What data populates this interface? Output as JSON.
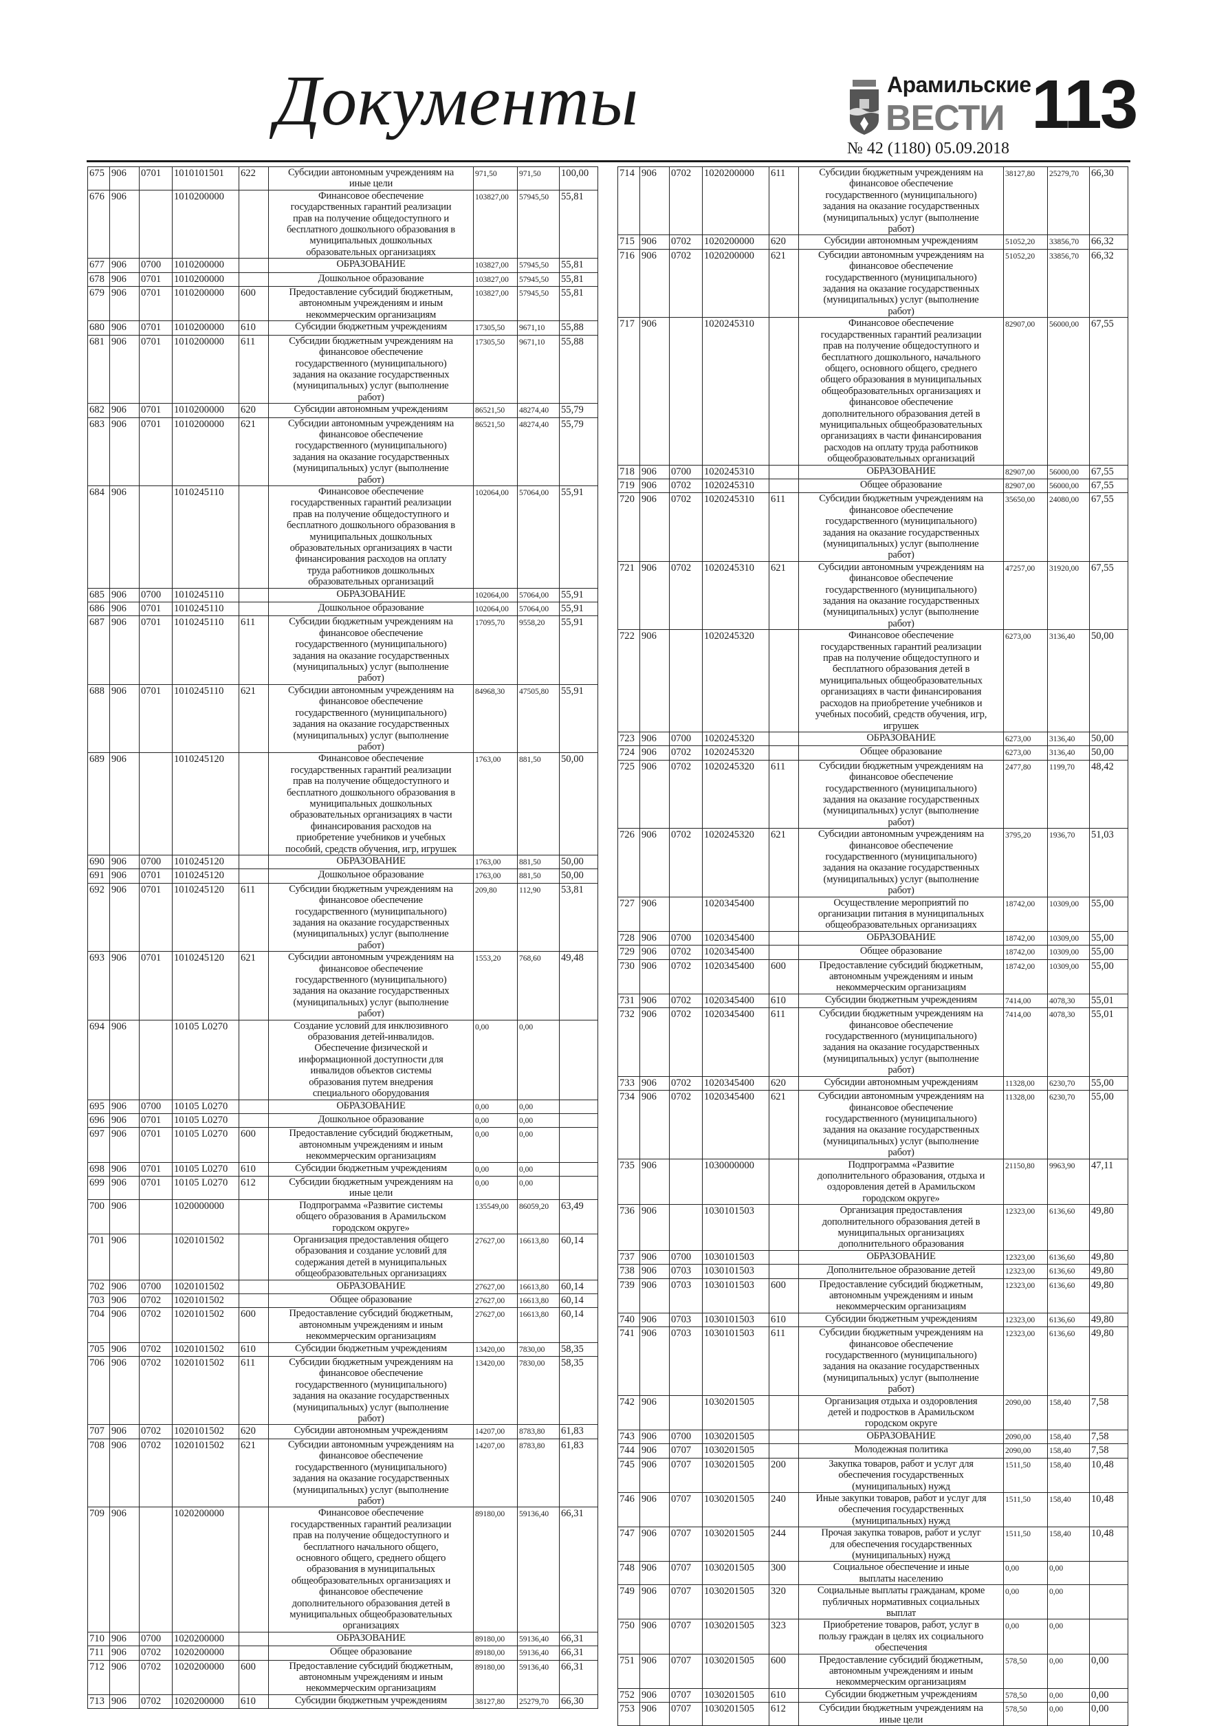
{
  "header": {
    "section_title": "Документы",
    "newspaper_name_line1": "Арамильские",
    "newspaper_name_line2": "ВЕСТИ",
    "page_number": "113",
    "issue": "№ 42 (1180) 05.09.2018",
    "logo_icon": "coat-of-arms-icon"
  },
  "texts": {
    "A": "Субсидии автономным учреждениям на иные цели",
    "FIN_DOSH": "Финансовое обеспечение государственных гарантий реализации прав на получение общедоступного и бесплатного дошкольного образования в муниципальных дошкольных образовательных организациях",
    "OBR": "ОБРАЗОВАНИЕ",
    "DOSH": "Дошкольное образование",
    "OBSH": "Общее образование",
    "PRED": "Предоставление субсидий бюджетным, автономным учреждениям и иным некоммерческим организациям",
    "SB": "Субсидии бюджетным учреждениям",
    "SB_FIN": "Субсидии бюджетным учреждениям на финансовое обеспечение государственного (муниципального) задания на оказание государственных (муниципальных) услуг (выполнение работ)",
    "SA": "Субсидии автономным учреждениям",
    "SA_FIN": "Субсидии автономным учреждениям на финансовое обеспечение государственного (муниципального) задания на оказание государственных (муниципальных) услуг (выполнение работ)",
    "SB_INYE": "Субсидии бюджетным учреждениям на иные цели"
  },
  "left_rows": [
    [
      "675",
      "906",
      "0701",
      "1010101501",
      "622",
      "@A",
      "971,50",
      "971,50",
      "100,00"
    ],
    [
      "676",
      "906",
      "",
      "1010200000",
      "",
      "@FIN_DOSH",
      "103827,00",
      "57945,50",
      "55,81"
    ],
    [
      "677",
      "906",
      "0700",
      "1010200000",
      "",
      "@OBR",
      "103827,00",
      "57945,50",
      "55,81"
    ],
    [
      "678",
      "906",
      "0701",
      "1010200000",
      "",
      "@DOSH",
      "103827,00",
      "57945,50",
      "55,81"
    ],
    [
      "679",
      "906",
      "0701",
      "1010200000",
      "600",
      "@PRED",
      "103827,00",
      "57945,50",
      "55,81"
    ],
    [
      "680",
      "906",
      "0701",
      "1010200000",
      "610",
      "@SB",
      "17305,50",
      "9671,10",
      "55,88"
    ],
    [
      "681",
      "906",
      "0701",
      "1010200000",
      "611",
      "@SB_FIN",
      "17305,50",
      "9671,10",
      "55,88"
    ],
    [
      "682",
      "906",
      "0701",
      "1010200000",
      "620",
      "@SA",
      "86521,50",
      "48274,40",
      "55,79"
    ],
    [
      "683",
      "906",
      "0701",
      "1010200000",
      "621",
      "@SA_FIN",
      "86521,50",
      "48274,40",
      "55,79"
    ],
    [
      "684",
      "906",
      "",
      "1010245110",
      "",
      "Финансовое обеспечение государственных гарантий реализации прав на получение общедоступного и бесплатного дошкольного образования в муниципальных дошкольных образовательных организациях в части финансирования расходов на оплату труда работников дошкольных образовательных организаций",
      "102064,00",
      "57064,00",
      "55,91"
    ],
    [
      "685",
      "906",
      "0700",
      "1010245110",
      "",
      "@OBR",
      "102064,00",
      "57064,00",
      "55,91"
    ],
    [
      "686",
      "906",
      "0701",
      "1010245110",
      "",
      "@DOSH",
      "102064,00",
      "57064,00",
      "55,91"
    ],
    [
      "687",
      "906",
      "0701",
      "1010245110",
      "611",
      "@SB_FIN",
      "17095,70",
      "9558,20",
      "55,91"
    ],
    [
      "688",
      "906",
      "0701",
      "1010245110",
      "621",
      "@SA_FIN",
      "84968,30",
      "47505,80",
      "55,91"
    ],
    [
      "689",
      "906",
      "",
      "1010245120",
      "",
      "Финансовое обеспечение государственных гарантий реализации прав на получение общедоступного и бесплатного дошкольного образования в муниципальных дошкольных образовательных организациях в части финансирования расходов на приобретение учебников и учебных пособий, средств обучения, игр, игрушек",
      "1763,00",
      "881,50",
      "50,00"
    ],
    [
      "690",
      "906",
      "0700",
      "1010245120",
      "",
      "@OBR",
      "1763,00",
      "881,50",
      "50,00"
    ],
    [
      "691",
      "906",
      "0701",
      "1010245120",
      "",
      "@DOSH",
      "1763,00",
      "881,50",
      "50,00"
    ],
    [
      "692",
      "906",
      "0701",
      "1010245120",
      "611",
      "@SB_FIN",
      "209,80",
      "112,90",
      "53,81"
    ],
    [
      "693",
      "906",
      "0701",
      "1010245120",
      "621",
      "@SA_FIN",
      "1553,20",
      "768,60",
      "49,48"
    ],
    [
      "694",
      "906",
      "",
      "10105 L0270",
      "",
      "Создание условий для инклюзивного образования детей-инвалидов. Обеспечение физической и информационной доступности для инвалидов объектов системы образования путем внедрения специального оборудования",
      "0,00",
      "0,00",
      ""
    ],
    [
      "695",
      "906",
      "0700",
      "10105 L0270",
      "",
      "@OBR",
      "0,00",
      "0,00",
      ""
    ],
    [
      "696",
      "906",
      "0701",
      "10105 L0270",
      "",
      "@DOSH",
      "0,00",
      "0,00",
      ""
    ],
    [
      "697",
      "906",
      "0701",
      "10105 L0270",
      "600",
      "@PRED",
      "0,00",
      "0,00",
      ""
    ],
    [
      "698",
      "906",
      "0701",
      "10105 L0270",
      "610",
      "@SB",
      "0,00",
      "0,00",
      ""
    ],
    [
      "699",
      "906",
      "0701",
      "10105 L0270",
      "612",
      "@SB_INYE",
      "0,00",
      "0,00",
      ""
    ],
    [
      "700",
      "906",
      "",
      "1020000000",
      "",
      "Подпрограмма «Развитие системы общего образования в Арамильском городском округе»",
      "135549,00",
      "86059,20",
      "63,49"
    ],
    [
      "701",
      "906",
      "",
      "1020101502",
      "",
      "Организация предоставления общего образования и создание условий для содержания детей в муниципальных общеобразовательных организациях",
      "27627,00",
      "16613,80",
      "60,14"
    ],
    [
      "702",
      "906",
      "0700",
      "1020101502",
      "",
      "@OBR",
      "27627,00",
      "16613,80",
      "60,14"
    ],
    [
      "703",
      "906",
      "0702",
      "1020101502",
      "",
      "@OBSH",
      "27627,00",
      "16613,80",
      "60,14"
    ],
    [
      "704",
      "906",
      "0702",
      "1020101502",
      "600",
      "@PRED",
      "27627,00",
      "16613,80",
      "60,14"
    ],
    [
      "705",
      "906",
      "0702",
      "1020101502",
      "610",
      "@SB",
      "13420,00",
      "7830,00",
      "58,35"
    ],
    [
      "706",
      "906",
      "0702",
      "1020101502",
      "611",
      "@SB_FIN",
      "13420,00",
      "7830,00",
      "58,35"
    ],
    [
      "707",
      "906",
      "0702",
      "1020101502",
      "620",
      "@SA",
      "14207,00",
      "8783,80",
      "61,83"
    ],
    [
      "708",
      "906",
      "0702",
      "1020101502",
      "621",
      "@SA_FIN",
      "14207,00",
      "8783,80",
      "61,83"
    ],
    [
      "709",
      "906",
      "",
      "1020200000",
      "",
      "Финансовое обеспечение государственных гарантий реализации прав на получение общедоступного и бесплатного начального общего, основного общего, среднего общего образования в муниципальных общеобразовательных организациях и финансовое обеспечение дополнительного образования детей в муниципальных общеобразовательных организациях",
      "89180,00",
      "59136,40",
      "66,31"
    ],
    [
      "710",
      "906",
      "0700",
      "1020200000",
      "",
      "@OBR",
      "89180,00",
      "59136,40",
      "66,31"
    ],
    [
      "711",
      "906",
      "0702",
      "1020200000",
      "",
      "@OBSH",
      "89180,00",
      "59136,40",
      "66,31"
    ],
    [
      "712",
      "906",
      "0702",
      "1020200000",
      "600",
      "@PRED",
      "89180,00",
      "59136,40",
      "66,31"
    ],
    [
      "713",
      "906",
      "0702",
      "1020200000",
      "610",
      "@SB",
      "38127,80",
      "25279,70",
      "66,30"
    ]
  ],
  "right_rows": [
    [
      "714",
      "906",
      "0702",
      "1020200000",
      "611",
      "@SB_FIN",
      "38127,80",
      "25279,70",
      "66,30"
    ],
    [
      "715",
      "906",
      "0702",
      "1020200000",
      "620",
      "@SA",
      "51052,20",
      "33856,70",
      "66,32"
    ],
    [
      "716",
      "906",
      "0702",
      "1020200000",
      "621",
      "@SA_FIN",
      "51052,20",
      "33856,70",
      "66,32"
    ],
    [
      "717",
      "906",
      "",
      "1020245310",
      "",
      "Финансовое обеспечение государственных гарантий реализации прав на получение общедоступного и бесплатного дошкольного, начального общего, основного общего, среднего общего образования в муниципальных общеобразовательных организациях и финансовое обеспечение дополнительного образования детей в муниципальных общеобразовательных организациях в части финансирования расходов на оплату труда работников общеобразовательных организаций",
      "82907,00",
      "56000,00",
      "67,55"
    ],
    [
      "718",
      "906",
      "0700",
      "1020245310",
      "",
      "@OBR",
      "82907,00",
      "56000,00",
      "67,55"
    ],
    [
      "719",
      "906",
      "0702",
      "1020245310",
      "",
      "@OBSH",
      "82907,00",
      "56000,00",
      "67,55"
    ],
    [
      "720",
      "906",
      "0702",
      "1020245310",
      "611",
      "@SB_FIN",
      "35650,00",
      "24080,00",
      "67,55"
    ],
    [
      "721",
      "906",
      "0702",
      "1020245310",
      "621",
      "@SA_FIN",
      "47257,00",
      "31920,00",
      "67,55"
    ],
    [
      "722",
      "906",
      "",
      "1020245320",
      "",
      "Финансовое обеспечение государственных гарантий реализации прав на получение общедоступного и бесплатного образования детей в муниципальных общеобразовательных организациях в части финансирования расходов на приобретение учебников и учебных пособий, средств обучения, игр, игрушек",
      "6273,00",
      "3136,40",
      "50,00"
    ],
    [
      "723",
      "906",
      "0700",
      "1020245320",
      "",
      "@OBR",
      "6273,00",
      "3136,40",
      "50,00"
    ],
    [
      "724",
      "906",
      "0702",
      "1020245320",
      "",
      "@OBSH",
      "6273,00",
      "3136,40",
      "50,00"
    ],
    [
      "725",
      "906",
      "0702",
      "1020245320",
      "611",
      "@SB_FIN",
      "2477,80",
      "1199,70",
      "48,42"
    ],
    [
      "726",
      "906",
      "0702",
      "1020245320",
      "621",
      "@SA_FIN",
      "3795,20",
      "1936,70",
      "51,03"
    ],
    [
      "727",
      "906",
      "",
      "1020345400",
      "",
      "Осуществление мероприятий по организации питания в муниципальных общеобразовательных организациях",
      "18742,00",
      "10309,00",
      "55,00"
    ],
    [
      "728",
      "906",
      "0700",
      "1020345400",
      "",
      "@OBR",
      "18742,00",
      "10309,00",
      "55,00"
    ],
    [
      "729",
      "906",
      "0702",
      "1020345400",
      "",
      "@OBSH",
      "18742,00",
      "10309,00",
      "55,00"
    ],
    [
      "730",
      "906",
      "0702",
      "1020345400",
      "600",
      "@PRED",
      "18742,00",
      "10309,00",
      "55,00"
    ],
    [
      "731",
      "906",
      "0702",
      "1020345400",
      "610",
      "@SB",
      "7414,00",
      "4078,30",
      "55,01"
    ],
    [
      "732",
      "906",
      "0702",
      "1020345400",
      "611",
      "@SB_FIN",
      "7414,00",
      "4078,30",
      "55,01"
    ],
    [
      "733",
      "906",
      "0702",
      "1020345400",
      "620",
      "@SA",
      "11328,00",
      "6230,70",
      "55,00"
    ],
    [
      "734",
      "906",
      "0702",
      "1020345400",
      "621",
      "@SA_FIN",
      "11328,00",
      "6230,70",
      "55,00"
    ],
    [
      "735",
      "906",
      "",
      "1030000000",
      "",
      "Подпрограмма «Развитие дополнительного образования, отдыха и оздоровления детей в Арамильском городском округе»",
      "21150,80",
      "9963,90",
      "47,11"
    ],
    [
      "736",
      "906",
      "",
      "1030101503",
      "",
      "Организация предоставления дополнительного образования детей в муниципальных организациях дополнительного образования",
      "12323,00",
      "6136,60",
      "49,80"
    ],
    [
      "737",
      "906",
      "0700",
      "1030101503",
      "",
      "@OBR",
      "12323,00",
      "6136,60",
      "49,80"
    ],
    [
      "738",
      "906",
      "0703",
      "1030101503",
      "",
      "Дополнительное образование детей",
      "12323,00",
      "6136,60",
      "49,80"
    ],
    [
      "739",
      "906",
      "0703",
      "1030101503",
      "600",
      "@PRED",
      "12323,00",
      "6136,60",
      "49,80"
    ],
    [
      "740",
      "906",
      "0703",
      "1030101503",
      "610",
      "@SB",
      "12323,00",
      "6136,60",
      "49,80"
    ],
    [
      "741",
      "906",
      "0703",
      "1030101503",
      "611",
      "@SB_FIN",
      "12323,00",
      "6136,60",
      "49,80"
    ],
    [
      "742",
      "906",
      "",
      "1030201505",
      "",
      "Организация отдыха и оздоровления детей и подростков в Арамильском городском округе",
      "2090,00",
      "158,40",
      "7,58"
    ],
    [
      "743",
      "906",
      "0700",
      "1030201505",
      "",
      "@OBR",
      "2090,00",
      "158,40",
      "7,58"
    ],
    [
      "744",
      "906",
      "0707",
      "1030201505",
      "",
      "Молодежная политика",
      "2090,00",
      "158,40",
      "7,58"
    ],
    [
      "745",
      "906",
      "0707",
      "1030201505",
      "200",
      "Закупка товаров, работ и услуг для обеспечения государственных (муниципальных) нужд",
      "1511,50",
      "158,40",
      "10,48"
    ],
    [
      "746",
      "906",
      "0707",
      "1030201505",
      "240",
      "Иные закупки товаров, работ и услуг для обеспечения государственных (муниципальных) нужд",
      "1511,50",
      "158,40",
      "10,48"
    ],
    [
      "747",
      "906",
      "0707",
      "1030201505",
      "244",
      "Прочая закупка товаров, работ и услуг для обеспечения государственных (муниципальных) нужд",
      "1511,50",
      "158,40",
      "10,48"
    ],
    [
      "748",
      "906",
      "0707",
      "1030201505",
      "300",
      "Социальное обеспечение и иные выплаты населению",
      "0,00",
      "0,00",
      ""
    ],
    [
      "749",
      "906",
      "0707",
      "1030201505",
      "320",
      "Социальные выплаты гражданам, кроме публичных нормативных социальных выплат",
      "0,00",
      "0,00",
      ""
    ],
    [
      "750",
      "906",
      "0707",
      "1030201505",
      "323",
      "Приобретение товаров, работ, услуг в пользу граждан в целях их социального обеспечения",
      "0,00",
      "0,00",
      ""
    ],
    [
      "751",
      "906",
      "0707",
      "1030201505",
      "600",
      "@PRED",
      "578,50",
      "0,00",
      "0,00"
    ],
    [
      "752",
      "906",
      "0707",
      "1030201505",
      "610",
      "@SB",
      "578,50",
      "0,00",
      "0,00"
    ],
    [
      "753",
      "906",
      "0707",
      "1030201505",
      "612",
      "@SB_INYE",
      "578,50",
      "0,00",
      "0,00"
    ]
  ]
}
